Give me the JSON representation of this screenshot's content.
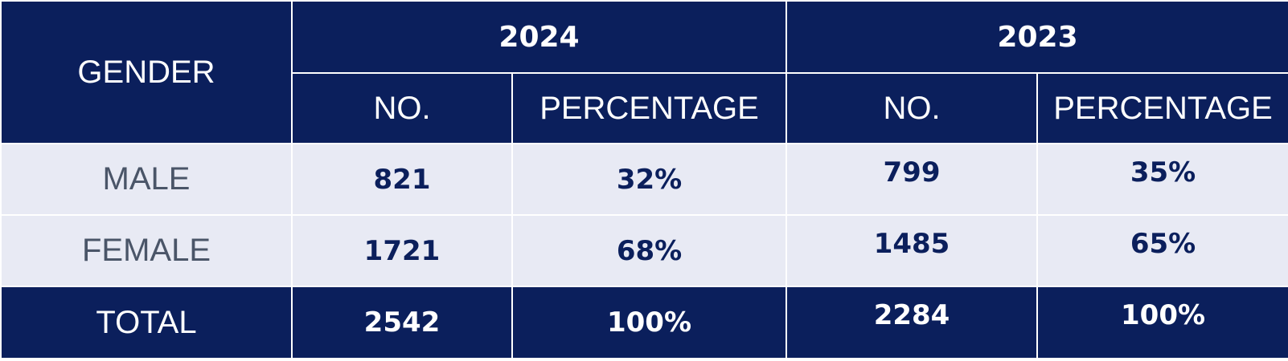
{
  "table": {
    "header": {
      "gender": "GENDER",
      "years": [
        "2024",
        "2023"
      ],
      "columns": [
        "NO.",
        "PERCENTAGE",
        "NO.",
        "PERCENTAGE"
      ]
    },
    "rows": [
      [
        "MALE",
        "821",
        "32%",
        "799",
        "35%"
      ],
      [
        "FEMALE",
        "1721",
        "68%",
        "1485",
        "65%"
      ]
    ],
    "total": [
      "TOTAL",
      "2542",
      "100%",
      "2284",
      "100%"
    ]
  }
}
